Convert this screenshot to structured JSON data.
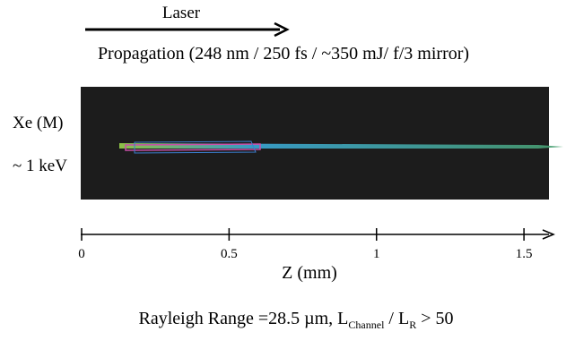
{
  "header": {
    "laser": "Laser",
    "propagation": "Propagation (248 nm / 250 fs / ~350 mJ/ f/3 mirror)"
  },
  "image": {
    "label_top": "Xe (M)",
    "label_bottom": "~ 1 keV"
  },
  "axis": {
    "xlim": [
      0,
      1.6
    ],
    "xticks": [
      0,
      0.5,
      1,
      1.5
    ],
    "xlabel": "Z  (mm)"
  },
  "caption": {
    "parts": [
      "Rayleigh Range =28.5 µm, L",
      "Channel",
      " / L",
      "R",
      " > 50"
    ]
  }
}
